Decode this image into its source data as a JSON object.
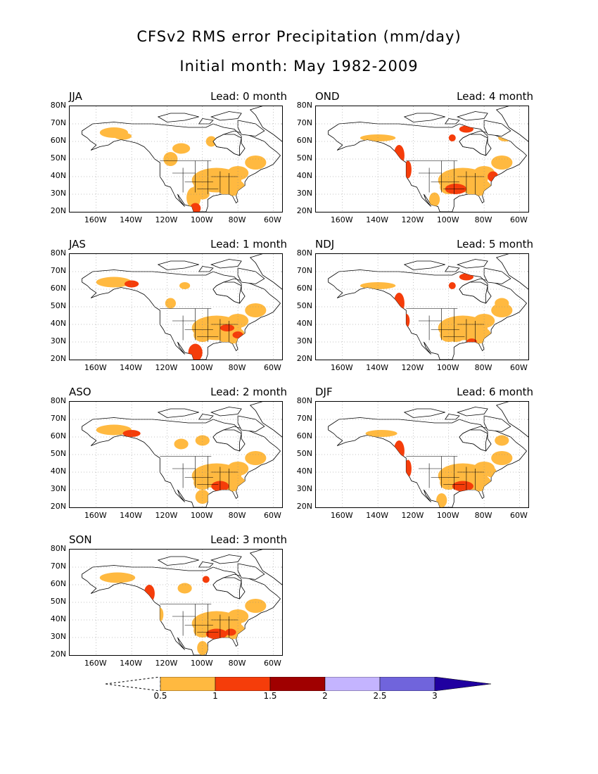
{
  "title_line1": "CFSv2 RMS error Precipitation (mm/day)",
  "title_line2": "Initial month: May 1982-2009",
  "lat_labels": [
    "80N",
    "70N",
    "60N",
    "50N",
    "40N",
    "30N",
    "20N"
  ],
  "lon_labels": [
    "160W",
    "140W",
    "120W",
    "100W",
    "80W",
    "60W"
  ],
  "panels": [
    {
      "season": "JJA",
      "lead": "Lead: 0 month"
    },
    {
      "season": "OND",
      "lead": "Lead: 4 month"
    },
    {
      "season": "JAS",
      "lead": "Lead: 1 month"
    },
    {
      "season": "NDJ",
      "lead": "Lead: 5 month"
    },
    {
      "season": "ASO",
      "lead": "Lead: 2 month"
    },
    {
      "season": "DJF",
      "lead": "Lead: 6 month"
    },
    {
      "season": "SON",
      "lead": "Lead: 3 month"
    }
  ],
  "colorbar": {
    "ticks": [
      "0.5",
      "1",
      "1.5",
      "2",
      "2.5",
      "3"
    ],
    "colors": [
      "#ffb940",
      "#f53d0a",
      "#a00000",
      "#c4b4ff",
      "#7064dc",
      "#2000a0"
    ]
  },
  "colors": {
    "land_bg": "#ffffff",
    "level1": "#ffb940",
    "level2": "#f53d0a",
    "level3": "#a00000"
  }
}
